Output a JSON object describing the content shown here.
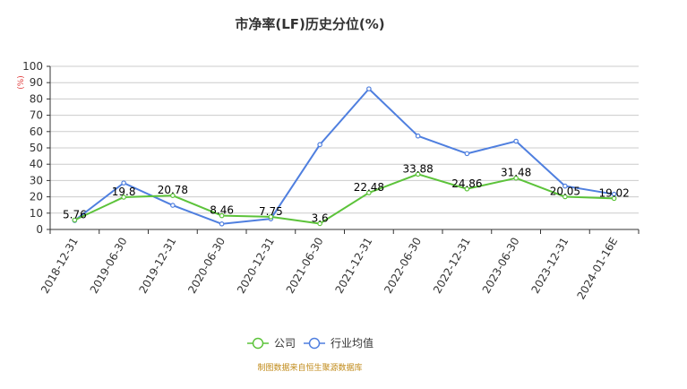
{
  "chart_data": {
    "type": "line",
    "title": "市净率(LF)历史分位(%)",
    "ylabel": "(%)",
    "ylim": [
      0,
      100
    ],
    "yticks": [
      0,
      10,
      20,
      30,
      40,
      50,
      60,
      70,
      80,
      90,
      100
    ],
    "grid": true,
    "legend_position": "bottom",
    "categories": [
      "2018-12-31",
      "2019-06-30",
      "2019-12-31",
      "2020-06-30",
      "2020-12-31",
      "2021-06-30",
      "2021-12-31",
      "2022-06-30",
      "2022-12-31",
      "2023-06-30",
      "2023-12-31",
      "2024-01-16E"
    ],
    "series": [
      {
        "name": "公司",
        "color": "#5cc33a",
        "values": [
          5.76,
          19.8,
          20.78,
          8.46,
          7.75,
          3.6,
          22.48,
          33.88,
          24.86,
          31.48,
          20.05,
          19.02
        ],
        "labels": [
          "5.76",
          "19.8",
          "20.78",
          "8.46",
          "7.75",
          "3.6",
          "22.48",
          "33.88",
          "24.86",
          "31.48",
          "20.05",
          "19.02"
        ]
      },
      {
        "name": "行业均值",
        "color": "#4f7fdf",
        "values": [
          5.5,
          28.5,
          14.8,
          3.4,
          6.5,
          52.0,
          86.2,
          57.3,
          46.5,
          54.1,
          26.6,
          21.6
        ]
      }
    ],
    "source": "制图数据来自恒生聚源数据库"
  }
}
